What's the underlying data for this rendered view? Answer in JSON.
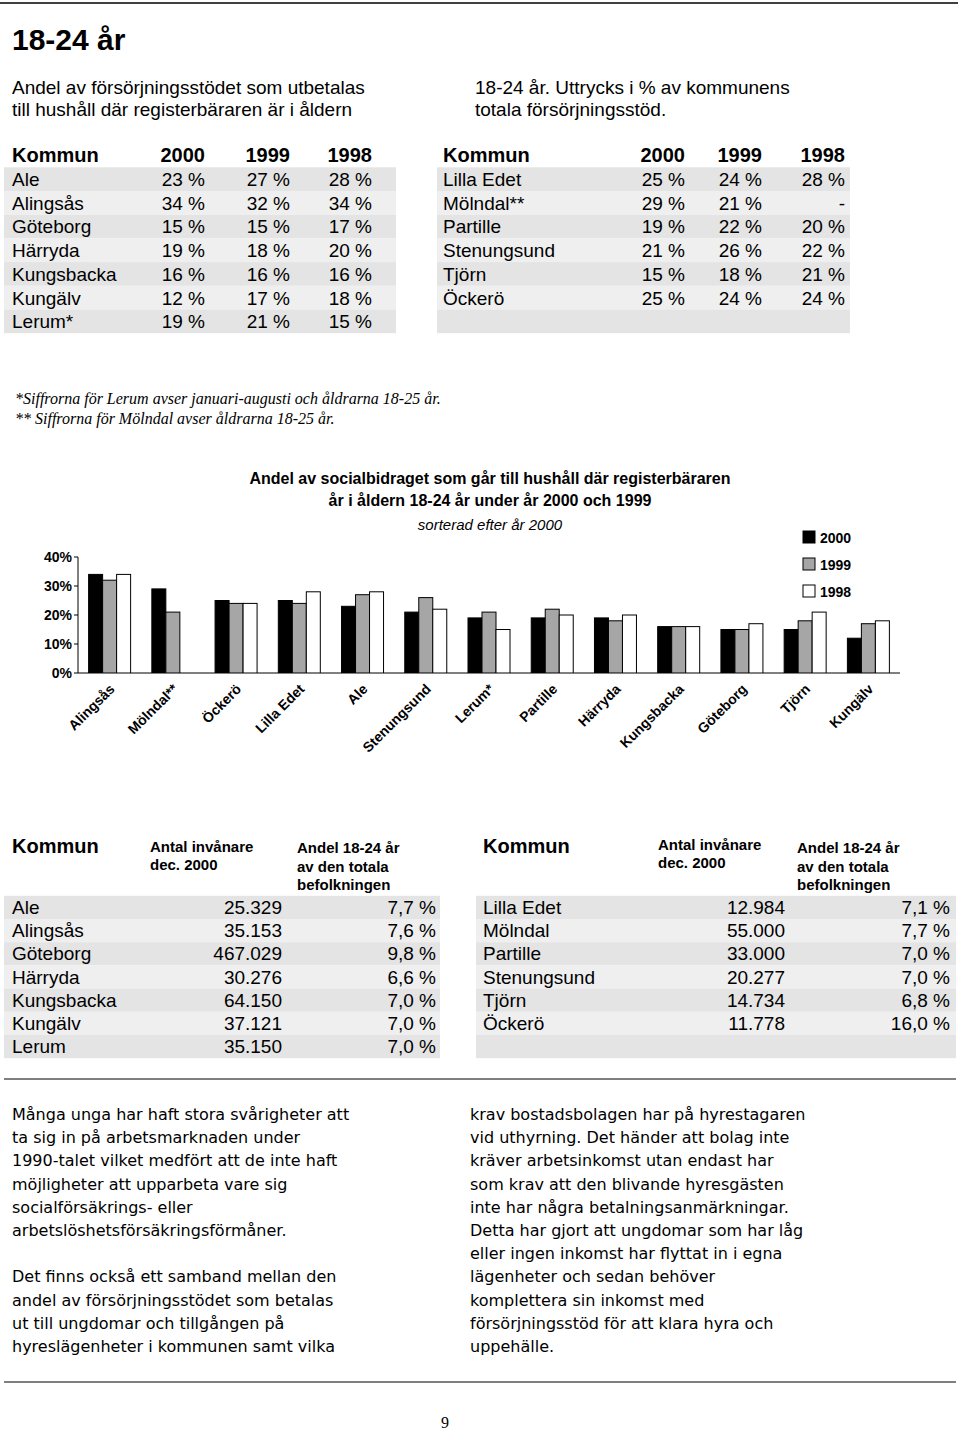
{
  "header": {
    "title": "18-24 år",
    "intro_left": [
      "Andel av försörjningsstödet som utbetalas",
      "till hushåll där registerbäraren är i åldern"
    ],
    "intro_right": [
      "18-24 år. Uttrycks i % av kommunens",
      "totala försörjningsstöd."
    ]
  },
  "table1": {
    "left": {
      "columns": [
        "Kommun",
        "2000",
        "1999",
        "1998"
      ],
      "rows": [
        [
          "Ale",
          "23 %",
          "27 %",
          "28 %"
        ],
        [
          "Alingsås",
          "34 %",
          "32 %",
          "34 %"
        ],
        [
          "Göteborg",
          "15 %",
          "15 %",
          "17 %"
        ],
        [
          "Härryda",
          "19 %",
          "18 %",
          "20 %"
        ],
        [
          "Kungsbacka",
          "16 %",
          "16 %",
          "16 %"
        ],
        [
          "Kungälv",
          "12 %",
          "17 %",
          "18 %"
        ],
        [
          "Lerum*",
          "19 %",
          "21 %",
          "15 %"
        ]
      ]
    },
    "right": {
      "columns": [
        "Kommun",
        "2000",
        "1999",
        "1998"
      ],
      "rows": [
        [
          "Lilla Edet",
          "25 %",
          "24 %",
          "28 %"
        ],
        [
          "Mölndal**",
          "29 %",
          "21 %",
          "-"
        ],
        [
          "Partille",
          "19 %",
          "22 %",
          "20 %"
        ],
        [
          "Stenungsund",
          "21 %",
          "26 %",
          "22 %"
        ],
        [
          "Tjörn",
          "15 %",
          "18 %",
          "21 %"
        ],
        [
          "Öckerö",
          "25 %",
          "24 %",
          "24 %"
        ]
      ]
    }
  },
  "notes": [
    "*Siffrorna för Lerum avser januari-augusti och åldrarna 18-25 år.",
    "** Siffrorna för Mölndal avser åldrarna 18-25 år."
  ],
  "chart_data": {
    "type": "bar",
    "title": "Andel av socialbidraget som går till hushåll där registerbäraren\når i åldern 18-24 år under år 2000 och 1999",
    "subtitle": "sorterad efter år 2000",
    "categories": [
      "Alingsås",
      "Mölndal**",
      "Öckerö",
      "Lilla Edet",
      "Ale",
      "Stenungsund",
      "Lerum*",
      "Partille",
      "Härryda",
      "Kungsbacka",
      "Göteborg",
      "Tjörn",
      "Kungälv"
    ],
    "series": [
      {
        "name": "2000",
        "color": "#000000",
        "values": [
          34,
          29,
          25,
          25,
          23,
          21,
          19,
          19,
          19,
          16,
          15,
          15,
          12
        ]
      },
      {
        "name": "1999",
        "color": "#a6a6a6",
        "values": [
          32,
          21,
          24,
          24,
          27,
          26,
          21,
          22,
          18,
          16,
          15,
          18,
          17
        ]
      },
      {
        "name": "1998",
        "color": "#ffffff",
        "values": [
          34,
          null,
          24,
          28,
          28,
          22,
          15,
          20,
          20,
          16,
          17,
          21,
          18
        ]
      }
    ],
    "ylim": [
      0,
      40
    ],
    "yticks": [
      {
        "value": 0,
        "label": "0%"
      },
      {
        "value": 10,
        "label": "10%"
      },
      {
        "value": 20,
        "label": "20%"
      },
      {
        "value": 30,
        "label": "30%"
      },
      {
        "value": 40,
        "label": "40%"
      }
    ],
    "grid": false,
    "legend": "top-right"
  },
  "table2": {
    "left": {
      "columns": [
        "Kommun",
        "Antal invånare\ndec. 2000",
        "Andel 18-24 år\nav den totala\nbefolkningen"
      ],
      "rows": [
        [
          "Ale",
          "25.329",
          "7,7 %"
        ],
        [
          "Alingsås",
          "35.153",
          "7,6 %"
        ],
        [
          "Göteborg",
          "467.029",
          "9,8 %"
        ],
        [
          "Härryda",
          "30.276",
          "6,6 %"
        ],
        [
          "Kungsbacka",
          "64.150",
          "7,0 %"
        ],
        [
          "Kungälv",
          "37.121",
          "7,0 %"
        ],
        [
          "Lerum",
          "35.150",
          "7,0 %"
        ]
      ]
    },
    "right": {
      "columns": [
        "Kommun",
        "Antal invånare\ndec. 2000",
        "Andel 18-24 år\nav den totala\nbefolkningen"
      ],
      "rows": [
        [
          "Lilla Edet",
          "12.984",
          "7,1 %"
        ],
        [
          "Mölndal",
          "55.000",
          "7,7 %"
        ],
        [
          "Partille",
          "33.000",
          "7,0 %"
        ],
        [
          "Stenungsund",
          "20.277",
          "7,0 %"
        ],
        [
          "Tjörn",
          "14.734",
          "6,8 %"
        ],
        [
          "Öckerö",
          "11.778",
          "16,0 %"
        ]
      ]
    }
  },
  "body": {
    "left": [
      [
        "Många unga har haft stora svårigheter att",
        "ta sig in på arbetsmarknaden under",
        "1990-talet vilket medfört att de inte haft",
        "möjligheter att upparbeta vare sig",
        "socialförsäkrings- eller",
        "arbetslöshetsförsäkringsförmåner."
      ],
      [
        "Det finns också ett samband mellan den",
        "andel av försörjningsstödet som betalas",
        "ut till ungdomar och tillgången på",
        "hyreslägenheter i kommunen samt vilka"
      ]
    ],
    "right": [
      [
        "krav bostadsbolagen har på hyrestagaren",
        "vid uthyrning. Det händer att bolag inte",
        "kräver arbetsinkomst utan endast har",
        "som krav att den blivande hyresgästen",
        "inte har några betalningsanmärkningar.",
        "Detta har gjort att ungdomar som har låg",
        "eller ingen inkomst har flyttat in i egna",
        "lägenheter och sedan behöver",
        "komplettera sin inkomst med",
        "försörjningsstöd för att klara hyra och",
        "uppehälle."
      ]
    ]
  },
  "page_number": "9"
}
